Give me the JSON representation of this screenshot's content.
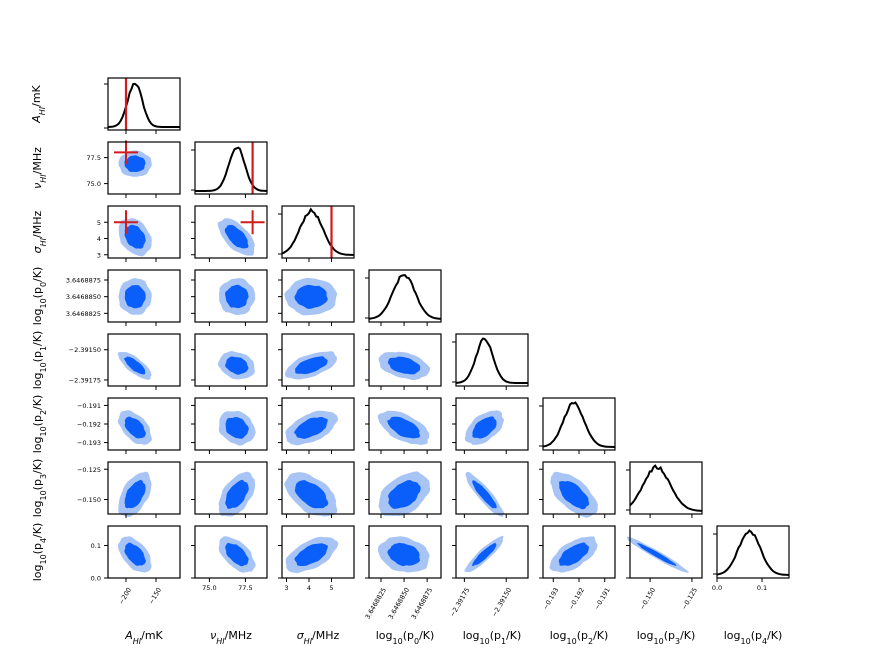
{
  "chart_data": {
    "type": "corner",
    "description_free": true,
    "parameters": [
      {
        "label": "A",
        "sub": "HI",
        "unit": "/mK",
        "ticks": [
          -200,
          -150
        ],
        "tick_labels": [
          "−200",
          "−150"
        ],
        "range": [
          -230,
          -110
        ],
        "truth": -200
      },
      {
        "label": "ν",
        "sub": "HI",
        "unit": "/MHz",
        "ticks": [
          75.0,
          77.5
        ],
        "tick_labels": [
          "75.0",
          "77.5"
        ],
        "range": [
          74.0,
          79.0
        ],
        "truth": 78.0
      },
      {
        "label": "σ",
        "sub": "HI",
        "unit": "/MHz",
        "ticks": [
          3,
          4,
          5
        ],
        "tick_labels": [
          "3",
          "4",
          "5"
        ],
        "range": [
          2.8,
          6.0
        ],
        "truth": 5.0
      },
      {
        "label": "log",
        "sub": "10",
        "inner": "(p",
        "isub": "0",
        "tail": "/K)",
        "ticks": [
          3.6468825,
          3.646885,
          3.6468875
        ],
        "tick_labels": [
          "3.6468825",
          "3.6468850",
          "3.6468875"
        ],
        "range": [
          3.6468812,
          3.646889
        ]
      },
      {
        "label": "log",
        "sub": "10",
        "inner": "(p",
        "isub": "1",
        "tail": "/K)",
        "ticks": [
          -2.39175,
          -2.3915
        ],
        "tick_labels": [
          "−2.39175",
          "−2.39150"
        ],
        "range": [
          -2.3918,
          -2.39137
        ]
      },
      {
        "label": "log",
        "sub": "10",
        "inner": "(p",
        "isub": "2",
        "tail": "/K)",
        "ticks": [
          -0.193,
          -0.192,
          -0.191
        ],
        "tick_labels": [
          "−0.193",
          "−0.192",
          "−0.191"
        ],
        "range": [
          -0.1934,
          -0.1906
        ]
      },
      {
        "label": "log",
        "sub": "10",
        "inner": "(p",
        "isub": "3",
        "tail": "/K)",
        "ticks": [
          -0.15,
          -0.125
        ],
        "tick_labels": [
          "−0.150",
          "−0.125"
        ],
        "range": [
          -0.162,
          -0.119
        ]
      },
      {
        "label": "log",
        "sub": "10",
        "inner": "(p",
        "isub": "4",
        "tail": "/K)",
        "ticks": [
          0.0,
          0.1
        ],
        "tick_labels": [
          "0.0",
          "0.1"
        ],
        "range": [
          0.0,
          0.16
        ]
      }
    ],
    "means": [
      -185,
      76.9,
      4.1,
      3.646885,
      -2.39163,
      -0.1922,
      -0.146,
      0.072
    ],
    "sds": [
      12,
      0.55,
      0.5,
      1.2e-06,
      5e-05,
      0.0004,
      0.008,
      0.024
    ],
    "correlations": [
      [
        1,
        0,
        -0.3,
        0,
        -0.75,
        -0.5,
        0.5,
        -0.5
      ],
      [
        0,
        1,
        -0.6,
        0,
        -0.2,
        -0.2,
        0.5,
        -0.55
      ],
      [
        -0.3,
        -0.6,
        1,
        0,
        0.55,
        0.5,
        -0.5,
        0.55
      ],
      [
        0,
        0,
        0,
        1,
        -0.35,
        -0.55,
        0.4,
        -0.2
      ],
      [
        -0.75,
        -0.2,
        0.55,
        -0.35,
        1,
        0.5,
        -0.9,
        0.9
      ],
      [
        -0.5,
        -0.2,
        0.5,
        -0.55,
        0.5,
        1,
        -0.6,
        0.6
      ],
      [
        0.5,
        0.5,
        -0.5,
        0.4,
        -0.9,
        -0.6,
        1,
        -0.97
      ],
      [
        -0.5,
        -0.55,
        0.55,
        -0.2,
        0.9,
        0.6,
        -0.97,
        1
      ]
    ],
    "contour_colors": {
      "inner": "#0a5ffb",
      "outer": "#a8c4f5"
    },
    "truth_color": "#d01c1c",
    "line_color": "#000000",
    "grid": false,
    "legend": "none"
  }
}
